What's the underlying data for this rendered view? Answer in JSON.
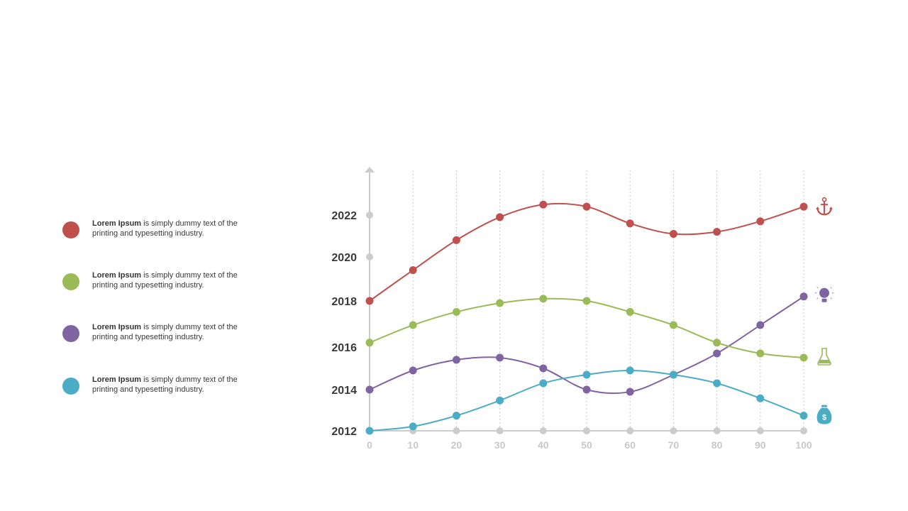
{
  "legend": {
    "items": [
      {
        "bold": "Lorem Ipsum",
        "text1": " is simply dummy text of the",
        "text2": "printing and typesetting industry.",
        "color": "#c0504d"
      },
      {
        "bold": "Lorem Ipsum",
        "text1": " is simply dummy text of the",
        "text2": "printing and typesetting industry.",
        "color": "#9bbb59"
      },
      {
        "bold": "Lorem Ipsum",
        "text1": " is simply dummy text of the",
        "text2": "printing and typesetting industry.",
        "color": "#8064a2"
      },
      {
        "bold": "Lorem Ipsum",
        "text1": " is simply dummy text of the",
        "text2": "printing and typesetting industry.",
        "color": "#4bacc6"
      }
    ]
  },
  "chart_data": {
    "type": "line",
    "title": "",
    "xlabel": "",
    "ylabel": "",
    "x": [
      0,
      10,
      20,
      30,
      40,
      50,
      60,
      70,
      80,
      90,
      100
    ],
    "x_tick_labels": [
      "0",
      "10",
      "20",
      "30",
      "40",
      "50",
      "60",
      "70",
      "80",
      "90",
      "100"
    ],
    "y_tick_labels": [
      {
        "label": "2012",
        "value": 2012
      },
      {
        "label": "2014",
        "value": 2013.9
      },
      {
        "label": "2016",
        "value": 2015.9
      },
      {
        "label": "2018",
        "value": 2018.0
      },
      {
        "label": "2020",
        "value": 2020.0
      },
      {
        "label": "2022",
        "value": 2022.0
      }
    ],
    "ylim": [
      2012,
      2023
    ],
    "grid": "vertical-dotted",
    "legend": "left",
    "axis_color": "#cccccc",
    "series": [
      {
        "color": "#c0504d",
        "icon": "anchor-icon",
        "values": [
          2018.0,
          2019.4,
          2020.8,
          2021.9,
          2022.5,
          2022.4,
          2021.6,
          2021.1,
          2021.2,
          2021.7,
          2022.4
        ]
      },
      {
        "color": "#8064a2",
        "icon": "lightbulb-icon",
        "values": [
          2013.9,
          2014.8,
          2015.3,
          2015.4,
          2014.9,
          2013.9,
          2013.8,
          2014.6,
          2015.6,
          2016.9,
          2018.2
        ]
      },
      {
        "color": "#9bbb59",
        "icon": "flask-icon",
        "values": [
          2016.1,
          2016.9,
          2017.5,
          2017.9,
          2018.1,
          2018.0,
          2017.5,
          2016.9,
          2016.1,
          2015.6,
          2015.4
        ]
      },
      {
        "color": "#4bacc6",
        "icon": "money-bag-icon",
        "values": [
          2012.0,
          2012.2,
          2012.7,
          2013.4,
          2014.2,
          2014.6,
          2014.8,
          2014.6,
          2014.2,
          2013.5,
          2012.7
        ]
      }
    ]
  }
}
